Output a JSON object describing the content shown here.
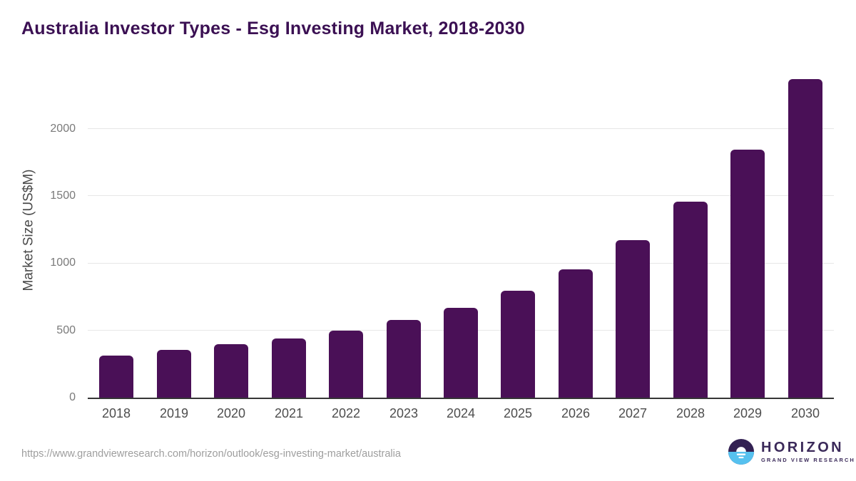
{
  "chart_data": {
    "type": "bar",
    "title": "Australia Investor Types - Esg Investing Market, 2018-2030",
    "xlabel": "",
    "ylabel": "Market Size (US$M)",
    "categories": [
      "2018",
      "2019",
      "2020",
      "2021",
      "2022",
      "2023",
      "2024",
      "2025",
      "2026",
      "2027",
      "2028",
      "2029",
      "2030"
    ],
    "values": [
      310,
      355,
      395,
      440,
      500,
      575,
      670,
      795,
      955,
      1170,
      1455,
      1845,
      2370
    ],
    "ylim": [
      0,
      2400
    ],
    "yticks": [
      0,
      500,
      1000,
      1500,
      2000
    ],
    "grid": "horizontal",
    "legend": "none",
    "bar_color": "#4a1057"
  },
  "footer": {
    "source_url": "https://www.grandviewresearch.com/horizon/outlook/esg-investing-market/australia",
    "logo": {
      "brand": "HORIZON",
      "sub_brand": "GRAND VIEW RESEARCH"
    }
  },
  "colors": {
    "bar": "#4a1057",
    "title_text": "#3b1053",
    "axis_line": "#363636",
    "gridline": "#e7e7e7",
    "logo_purple": "#3b2a5a",
    "logo_dark_circle": "#332153",
    "logo_blue": "#56c1ef"
  }
}
